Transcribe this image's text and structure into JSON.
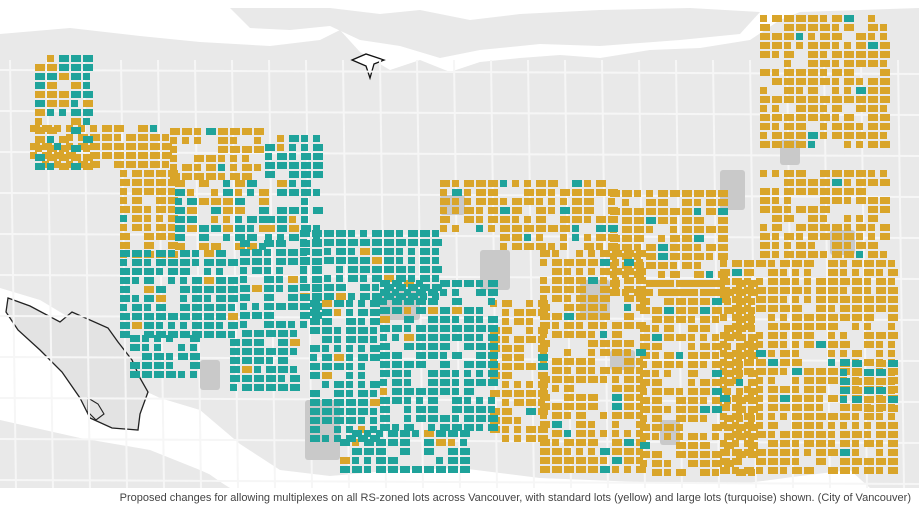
{
  "caption": "Proposed changes for allowing multiplexes on all RS-zoned lots across Vancouver, with standard lots (yellow) and large lots (turquoise) shown. (City of Vancouver)",
  "map": {
    "legend": {
      "standard_lots": {
        "label": "standard lots (yellow)",
        "color": "#d9a52a"
      },
      "large_lots": {
        "label": "large lots (turquoise)",
        "color": "#1fa39b"
      }
    },
    "colors": {
      "land": "#e9e9e9",
      "water": "#ffffff",
      "roads": "#f7f7f7",
      "parks": "#c9c9c9",
      "boundary": "#222222"
    }
  }
}
